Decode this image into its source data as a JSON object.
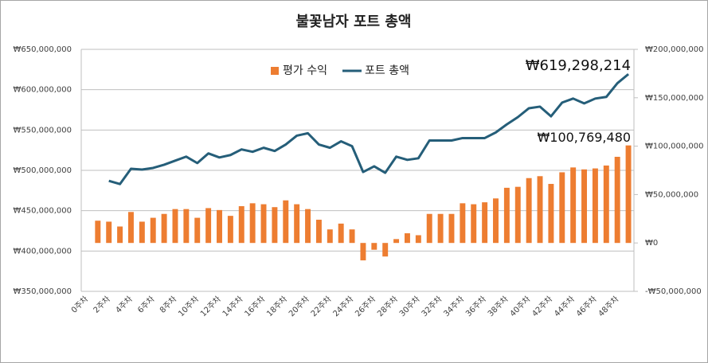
{
  "chart_data": {
    "type": "bar-line",
    "title": "불꽃남자 포트 총액",
    "categories": [
      "0주차",
      null,
      "2주차",
      null,
      "4주차",
      null,
      "6주차",
      null,
      "8주차",
      null,
      "10주차",
      null,
      "12주차",
      null,
      "14주차",
      null,
      "16주차",
      null,
      "18주차",
      null,
      "20주차",
      null,
      "22주차",
      null,
      "24주차",
      null,
      "26주차",
      null,
      "28주차",
      null,
      "30주차",
      null,
      "32주차",
      null,
      "34주차",
      null,
      "36주차",
      null,
      "38주차",
      null,
      "40주차",
      null,
      "42주차",
      null,
      "44주차",
      null,
      "46주차",
      null,
      "48주차",
      null
    ],
    "series": [
      {
        "name": "평가 수익",
        "type": "bar",
        "axis": "y2",
        "color": "#ed7d31",
        "values": [
          null,
          23000000,
          22000000,
          17000000,
          32000000,
          22000000,
          26000000,
          30000000,
          35000000,
          35000000,
          26000000,
          36000000,
          34000000,
          28000000,
          38000000,
          41000000,
          40000000,
          37000000,
          44000000,
          40000000,
          35000000,
          24000000,
          14000000,
          20000000,
          14000000,
          -18000000,
          -7000000,
          -14000000,
          4000000,
          10000000,
          8000000,
          30000000,
          30000000,
          30000000,
          41000000,
          40000000,
          42000000,
          46000000,
          57000000,
          58000000,
          67000000,
          69000000,
          61000000,
          73000000,
          78000000,
          76000000,
          77000000,
          80000000,
          89000000,
          100769480
        ]
      },
      {
        "name": "포트 총액",
        "type": "line",
        "color": "#255e79",
        "values": [
          null,
          null,
          487000000,
          483000000,
          502000000,
          501000000,
          503000000,
          507000000,
          512000000,
          517000000,
          509000000,
          521000000,
          516000000,
          519000000,
          526000000,
          523000000,
          528000000,
          524000000,
          532000000,
          543000000,
          546000000,
          532000000,
          528000000,
          536000000,
          530000000,
          498000000,
          505000000,
          497000000,
          517000000,
          513000000,
          515000000,
          537000000,
          537000000,
          537000000,
          540000000,
          540000000,
          540000000,
          547000000,
          557000000,
          566000000,
          577000000,
          579000000,
          567000000,
          584000000,
          589000000,
          583000000,
          589000000,
          591000000,
          608000000,
          619298214
        ]
      }
    ],
    "annotations": [
      "₩619,298,214",
      "₩100,769,480"
    ],
    "ylim": [
      350000000,
      650000000
    ],
    "yticks": [
      {
        "value": 350000000,
        "label": "₩350,000,000"
      },
      {
        "value": 400000000,
        "label": "₩400,000,000"
      },
      {
        "value": 450000000,
        "label": "₩450,000,000"
      },
      {
        "value": 500000000,
        "label": "₩500,000,000"
      },
      {
        "value": 550000000,
        "label": "₩550,000,000"
      },
      {
        "value": 600000000,
        "label": "₩600,000,000"
      },
      {
        "value": 650000000,
        "label": "₩650,000,000"
      }
    ],
    "y2lim": [
      -50000000,
      200000000
    ],
    "y2ticks": [
      {
        "value": -50000000,
        "label": "-₩50,000,000"
      },
      {
        "value": 0,
        "label": "₩0"
      },
      {
        "value": 50000000,
        "label": "₩50,000,000"
      },
      {
        "value": 100000000,
        "label": "₩100,000,000"
      },
      {
        "value": 150000000,
        "label": "₩150,000,000"
      },
      {
        "value": 200000000,
        "label": "₩200,000,000"
      }
    ],
    "grid": true,
    "legend": "top"
  }
}
